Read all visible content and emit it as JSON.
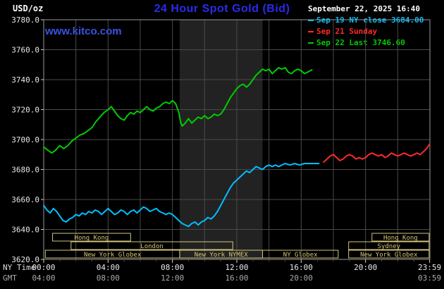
{
  "header": {
    "units_label": "USD/oz",
    "title": "24 Hour Spot Gold (Bid)",
    "datetime": "September 22, 2025 16:40",
    "watermark": "www.kitco.com"
  },
  "colors": {
    "title_blue": "#2a2aee",
    "watermark_blue": "#3a52e8",
    "grid": "#4a4a4a",
    "border": "#999999",
    "band": "#222222",
    "session": "#d2c57a",
    "axis_text": "#e8e8e8",
    "gmt_text": "#aaaaaa",
    "tick": "#cccccc"
  },
  "legend": [
    {
      "label": "Sep 19 NY close 3684.00",
      "color": "#00bfff"
    },
    {
      "label": "Sep 21 Sunday",
      "color": "#ff2a2a"
    },
    {
      "label": "Sep 22 Last 3746.60",
      "color": "#00cc00"
    }
  ],
  "axes": {
    "ny_label": "NY Time",
    "gmt_label": "GMT",
    "y_ticks": [
      3620,
      3640,
      3660,
      3680,
      3700,
      3720,
      3740,
      3760,
      3780
    ],
    "x_ticks": [
      {
        "h": 0,
        "ny": "00:00",
        "gmt": "04:00"
      },
      {
        "h": 4,
        "ny": "04:00",
        "gmt": "08:00"
      },
      {
        "h": 8,
        "ny": "08:00",
        "gmt": "12:00"
      },
      {
        "h": 12,
        "ny": "12:00",
        "gmt": "16:00"
      },
      {
        "h": 16,
        "ny": "16:00",
        "gmt": "20:00"
      },
      {
        "h": 20,
        "ny": "20:00",
        "gmt": ""
      },
      {
        "h": 23.983,
        "ny": "23:59",
        "gmt": "03:59"
      }
    ]
  },
  "sessions": {
    "band": {
      "label": "New York NYMEX",
      "start": 8.45,
      "end": 13.6
    },
    "rows": [
      [
        {
          "label": "Hong Kong",
          "start": 0.55,
          "end": 5.4
        },
        {
          "label": "Hong Kong",
          "start": 20.4,
          "end": 23.95
        }
      ],
      [
        {
          "label": "London",
          "start": 1.7,
          "end": 11.75
        },
        {
          "label": "Sydney",
          "start": 18.95,
          "end": 23.95
        }
      ],
      [
        {
          "label": "New York Globex",
          "start": 0.1,
          "end": 8.45
        },
        {
          "label": "New York NYMEX",
          "start": 8.45,
          "end": 13.6
        },
        {
          "label": "NY Globex",
          "start": 13.6,
          "end": 18.3
        },
        {
          "label": "New York Globex",
          "start": 18.95,
          "end": 23.95
        }
      ]
    ]
  },
  "chart_data": {
    "type": "line",
    "title": "24 Hour Spot Gold (Bid)",
    "ylabel": "USD/oz",
    "xlabel": "NY Time (hours)",
    "xlim": [
      0,
      24
    ],
    "ylim": [
      3620,
      3780
    ],
    "y_tick_step": 20,
    "grid": true,
    "legend_position": "top-right",
    "series": [
      {
        "id": "sep19",
        "name": "Sep 19 NY close 3684.00",
        "color": "#00bfff",
        "points": [
          [
            0,
            3656
          ],
          [
            0.2,
            3653
          ],
          [
            0.4,
            3651
          ],
          [
            0.6,
            3654
          ],
          [
            0.8,
            3652
          ],
          [
            1,
            3649
          ],
          [
            1.2,
            3646
          ],
          [
            1.4,
            3645
          ],
          [
            1.6,
            3647
          ],
          [
            1.8,
            3648
          ],
          [
            2,
            3650
          ],
          [
            2.2,
            3649
          ],
          [
            2.4,
            3651
          ],
          [
            2.6,
            3650
          ],
          [
            2.8,
            3652
          ],
          [
            3,
            3651
          ],
          [
            3.2,
            3653
          ],
          [
            3.4,
            3652
          ],
          [
            3.6,
            3650
          ],
          [
            3.8,
            3652
          ],
          [
            4,
            3654
          ],
          [
            4.2,
            3652
          ],
          [
            4.4,
            3650
          ],
          [
            4.6,
            3651
          ],
          [
            4.8,
            3653
          ],
          [
            5,
            3652
          ],
          [
            5.2,
            3650
          ],
          [
            5.4,
            3652
          ],
          [
            5.6,
            3653
          ],
          [
            5.8,
            3651
          ],
          [
            6,
            3653
          ],
          [
            6.2,
            3655
          ],
          [
            6.4,
            3654
          ],
          [
            6.6,
            3652
          ],
          [
            6.8,
            3653
          ],
          [
            7,
            3654
          ],
          [
            7.2,
            3652
          ],
          [
            7.4,
            3651
          ],
          [
            7.6,
            3650
          ],
          [
            7.8,
            3651
          ],
          [
            8,
            3650
          ],
          [
            8.2,
            3648
          ],
          [
            8.4,
            3646
          ],
          [
            8.6,
            3644
          ],
          [
            8.8,
            3643
          ],
          [
            9,
            3642
          ],
          [
            9.2,
            3644
          ],
          [
            9.4,
            3645
          ],
          [
            9.6,
            3643
          ],
          [
            9.8,
            3645
          ],
          [
            10,
            3646
          ],
          [
            10.2,
            3648
          ],
          [
            10.4,
            3647
          ],
          [
            10.6,
            3649
          ],
          [
            10.8,
            3652
          ],
          [
            11,
            3656
          ],
          [
            11.2,
            3660
          ],
          [
            11.4,
            3664
          ],
          [
            11.6,
            3668
          ],
          [
            11.8,
            3671
          ],
          [
            12,
            3673
          ],
          [
            12.2,
            3675
          ],
          [
            12.4,
            3677
          ],
          [
            12.6,
            3679
          ],
          [
            12.8,
            3678
          ],
          [
            13,
            3680
          ],
          [
            13.2,
            3682
          ],
          [
            13.4,
            3681
          ],
          [
            13.6,
            3680
          ],
          [
            13.8,
            3682
          ],
          [
            14,
            3683
          ],
          [
            14.2,
            3682
          ],
          [
            14.4,
            3683
          ],
          [
            14.6,
            3682
          ],
          [
            14.8,
            3683
          ],
          [
            15,
            3684
          ],
          [
            15.3,
            3683
          ],
          [
            15.6,
            3684
          ],
          [
            15.9,
            3683
          ],
          [
            16.2,
            3684
          ],
          [
            16.5,
            3684
          ],
          [
            16.8,
            3684
          ],
          [
            17.1,
            3684
          ]
        ]
      },
      {
        "id": "sep21",
        "name": "Sep 21 Sunday",
        "color": "#ff2a2a",
        "points": [
          [
            17.4,
            3685
          ],
          [
            17.6,
            3687
          ],
          [
            17.8,
            3689
          ],
          [
            18,
            3690
          ],
          [
            18.2,
            3688
          ],
          [
            18.4,
            3686
          ],
          [
            18.6,
            3687
          ],
          [
            18.8,
            3689
          ],
          [
            19,
            3690
          ],
          [
            19.2,
            3689
          ],
          [
            19.4,
            3687
          ],
          [
            19.6,
            3688
          ],
          [
            19.8,
            3687
          ],
          [
            20,
            3688
          ],
          [
            20.2,
            3690
          ],
          [
            20.4,
            3691
          ],
          [
            20.6,
            3690
          ],
          [
            20.8,
            3689
          ],
          [
            21,
            3690
          ],
          [
            21.2,
            3688
          ],
          [
            21.4,
            3689
          ],
          [
            21.6,
            3691
          ],
          [
            21.8,
            3690
          ],
          [
            22,
            3689
          ],
          [
            22.2,
            3690
          ],
          [
            22.4,
            3691
          ],
          [
            22.6,
            3690
          ],
          [
            22.8,
            3689
          ],
          [
            23,
            3690
          ],
          [
            23.2,
            3691
          ],
          [
            23.4,
            3690
          ],
          [
            23.6,
            3692
          ],
          [
            23.8,
            3694
          ],
          [
            23.98,
            3697
          ]
        ]
      },
      {
        "id": "sep22",
        "name": "Sep 22 Last 3746.60",
        "color": "#00cc00",
        "points": [
          [
            0,
            3695
          ],
          [
            0.25,
            3693
          ],
          [
            0.5,
            3691
          ],
          [
            0.75,
            3693
          ],
          [
            1,
            3696
          ],
          [
            1.25,
            3694
          ],
          [
            1.5,
            3696
          ],
          [
            1.75,
            3699
          ],
          [
            2,
            3701
          ],
          [
            2.25,
            3703
          ],
          [
            2.5,
            3704
          ],
          [
            2.75,
            3706
          ],
          [
            3,
            3708
          ],
          [
            3.25,
            3712
          ],
          [
            3.5,
            3715
          ],
          [
            3.75,
            3718
          ],
          [
            4,
            3720
          ],
          [
            4.2,
            3722
          ],
          [
            4.4,
            3719
          ],
          [
            4.6,
            3716
          ],
          [
            4.8,
            3714
          ],
          [
            5,
            3713
          ],
          [
            5.2,
            3716
          ],
          [
            5.4,
            3718
          ],
          [
            5.6,
            3717
          ],
          [
            5.8,
            3719
          ],
          [
            6,
            3718
          ],
          [
            6.2,
            3720
          ],
          [
            6.4,
            3722
          ],
          [
            6.6,
            3720
          ],
          [
            6.8,
            3719
          ],
          [
            7,
            3721
          ],
          [
            7.2,
            3722
          ],
          [
            7.4,
            3724
          ],
          [
            7.6,
            3725
          ],
          [
            7.8,
            3724
          ],
          [
            8,
            3726
          ],
          [
            8.2,
            3724
          ],
          [
            8.4,
            3718
          ],
          [
            8.5,
            3712
          ],
          [
            8.6,
            3709
          ],
          [
            8.8,
            3711
          ],
          [
            9,
            3714
          ],
          [
            9.2,
            3711
          ],
          [
            9.4,
            3713
          ],
          [
            9.6,
            3715
          ],
          [
            9.8,
            3714
          ],
          [
            10,
            3716
          ],
          [
            10.2,
            3714
          ],
          [
            10.4,
            3715
          ],
          [
            10.6,
            3717
          ],
          [
            10.8,
            3716
          ],
          [
            11,
            3717
          ],
          [
            11.2,
            3720
          ],
          [
            11.4,
            3724
          ],
          [
            11.6,
            3728
          ],
          [
            11.8,
            3731
          ],
          [
            12,
            3734
          ],
          [
            12.2,
            3736
          ],
          [
            12.4,
            3737
          ],
          [
            12.6,
            3735
          ],
          [
            12.8,
            3737
          ],
          [
            13,
            3740
          ],
          [
            13.2,
            3743
          ],
          [
            13.4,
            3745
          ],
          [
            13.6,
            3747
          ],
          [
            13.8,
            3746
          ],
          [
            14,
            3747
          ],
          [
            14.2,
            3744
          ],
          [
            14.4,
            3746
          ],
          [
            14.6,
            3748
          ],
          [
            14.8,
            3747
          ],
          [
            15,
            3748
          ],
          [
            15.2,
            3745
          ],
          [
            15.4,
            3744
          ],
          [
            15.6,
            3746
          ],
          [
            15.8,
            3747
          ],
          [
            16,
            3746
          ],
          [
            16.2,
            3744
          ],
          [
            16.4,
            3745
          ],
          [
            16.67,
            3746.6
          ]
        ]
      }
    ]
  }
}
